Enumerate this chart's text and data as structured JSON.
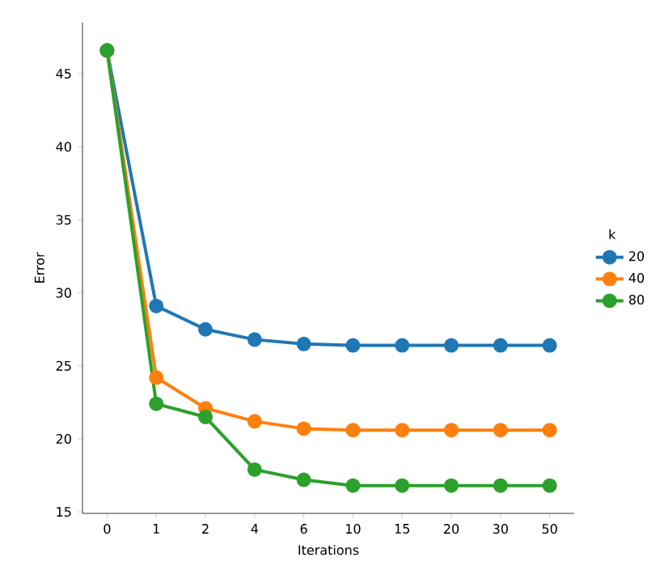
{
  "chart_data": {
    "type": "line",
    "xlabel": "Iterations",
    "ylabel": "Error",
    "legend_title": "k",
    "legend": "right",
    "marker": "circle",
    "categories": [
      "0",
      "1",
      "2",
      "4",
      "6",
      "10",
      "15",
      "20",
      "30",
      "50"
    ],
    "ylim": [
      14.9,
      48.5
    ],
    "yticks": [
      15,
      20,
      25,
      30,
      35,
      40,
      45
    ],
    "series": [
      {
        "name": "20",
        "color": "#1f77b4",
        "values": [
          46.6,
          29.1,
          27.5,
          26.8,
          26.5,
          26.4,
          26.4,
          26.4,
          26.4,
          26.4
        ]
      },
      {
        "name": "40",
        "color": "#ff7f0e",
        "values": [
          46.6,
          24.2,
          22.1,
          21.2,
          20.7,
          20.6,
          20.6,
          20.6,
          20.6,
          20.6
        ]
      },
      {
        "name": "80",
        "color": "#2ca02c",
        "values": [
          46.6,
          22.4,
          21.5,
          17.9,
          17.2,
          16.8,
          16.8,
          16.8,
          16.8,
          16.8
        ]
      }
    ]
  }
}
